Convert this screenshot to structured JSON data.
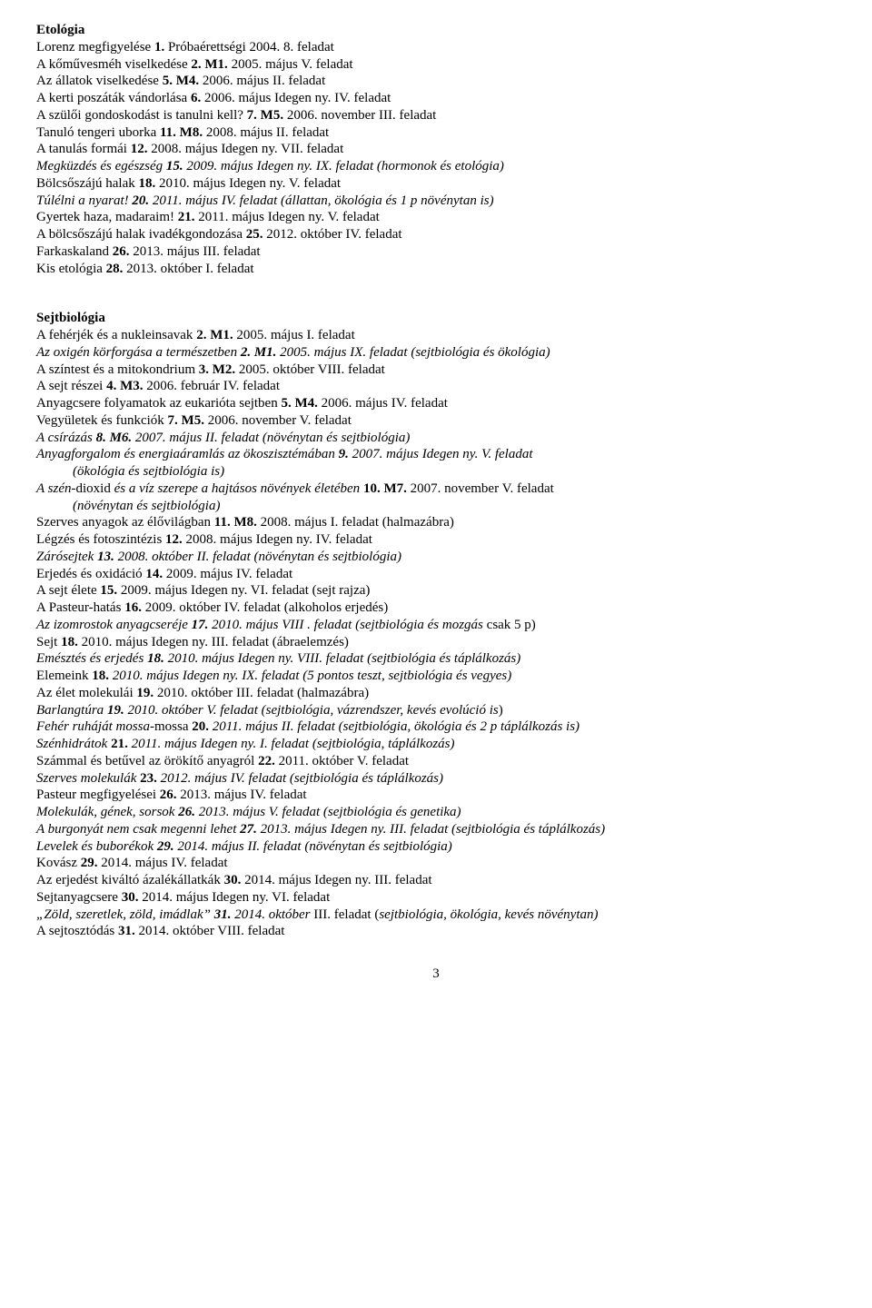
{
  "etologia": {
    "title": "Etológia",
    "lines": [
      {
        "segs": [
          {
            "t": "Lorenz megfigyelése  "
          },
          {
            "t": "1.",
            "b": 1
          },
          {
            "t": "  Próbaérettségi 2004.  8. feladat"
          }
        ]
      },
      {
        "segs": [
          {
            "t": "A kőművesméh viselkedése  "
          },
          {
            "t": "2.  M1.",
            "b": 1
          },
          {
            "t": "  2005. május  V. feladat"
          }
        ]
      },
      {
        "segs": [
          {
            "t": "Az állatok viselkedése  "
          },
          {
            "t": "5.  M4.",
            "b": 1
          },
          {
            "t": "  2006. május  II. feladat"
          }
        ]
      },
      {
        "segs": [
          {
            "t": "A kerti poszáták vándorlása  "
          },
          {
            "t": "6.",
            "b": 1
          },
          {
            "t": "  2006. május  Idegen ny.  IV. feladat"
          }
        ]
      },
      {
        "segs": [
          {
            "t": "A szülői gondoskodást is tanulni kell?  "
          },
          {
            "t": "7.  M5.",
            "b": 1
          },
          {
            "t": "  2006. november  III. feladat"
          }
        ]
      },
      {
        "segs": [
          {
            "t": "Tanuló tengeri uborka  "
          },
          {
            "t": "11.  M8.",
            "b": 1
          },
          {
            "t": "  2008. május  II. feladat"
          }
        ]
      },
      {
        "segs": [
          {
            "t": "A tanulás formái  "
          },
          {
            "t": "12.",
            "b": 1
          },
          {
            "t": "  2008. május  Idegen ny.  VII. feladat"
          }
        ]
      },
      {
        "segs": [
          {
            "t": "Megküzdés és egészség  ",
            "i": 1
          },
          {
            "t": "15.",
            "b": 1,
            "i": 1
          },
          {
            "t": "  2009. május  Idegen ny.  IX. feladat   (hormonok és etológia)",
            "i": 1
          }
        ]
      },
      {
        "segs": [
          {
            "t": "Bölcsőszájú halak  "
          },
          {
            "t": "18.",
            "b": 1
          },
          {
            "t": "  2010. május  Idegen ny.  V. feladat"
          }
        ]
      },
      {
        "segs": [
          {
            "t": "Túlélni a nyarat!  ",
            "i": 1
          },
          {
            "t": "20.",
            "b": 1,
            "i": 1
          },
          {
            "t": "  2011. május  IV. feladat  (állattan, ökológia és 1 p növénytan is)",
            "i": 1
          }
        ]
      },
      {
        "segs": [
          {
            "t": "Gyertek haza, madaraim!  "
          },
          {
            "t": "21.",
            "b": 1
          },
          {
            "t": "  2011. május  Idegen ny.  V. feladat"
          }
        ]
      },
      {
        "segs": [
          {
            "t": "A bölcsőszájú halak ivadékgondozása  "
          },
          {
            "t": "25.",
            "b": 1
          },
          {
            "t": "  2012. október  IV. feladat"
          }
        ]
      },
      {
        "segs": [
          {
            "t": "Farkaskaland  "
          },
          {
            "t": "26.",
            "b": 1
          },
          {
            "t": "  2013. május  III. feladat"
          }
        ]
      },
      {
        "segs": [
          {
            "t": "Kis etológia  "
          },
          {
            "t": "28.",
            "b": 1
          },
          {
            "t": "  2013. október  I. feladat"
          }
        ]
      }
    ]
  },
  "sejtbiologia": {
    "title": "Sejtbiológia",
    "lines": [
      {
        "segs": [
          {
            "t": "A fehérjék és a nukleinsavak  "
          },
          {
            "t": "2.  M1.",
            "b": 1
          },
          {
            "t": "  2005. május  I. feladat"
          }
        ]
      },
      {
        "segs": [
          {
            "t": "Az oxigén körforgása a természetben  ",
            "i": 1
          },
          {
            "t": "2.  M1.",
            "b": 1,
            "i": 1
          },
          {
            "t": "  2005. május  IX. feladat   (sejtbiológia és ökológia)",
            "i": 1
          }
        ]
      },
      {
        "segs": [
          {
            "t": "A színtest és a mitokondrium  "
          },
          {
            "t": "3.  M2.",
            "b": 1
          },
          {
            "t": "  2005. október  VIII. feladat"
          }
        ]
      },
      {
        "segs": [
          {
            "t": "A sejt részei  "
          },
          {
            "t": "4.  M3.",
            "b": 1
          },
          {
            "t": "  2006. február  IV. feladat"
          }
        ]
      },
      {
        "segs": [
          {
            "t": "Anyagcsere folyamatok az eukarióta sejtben  "
          },
          {
            "t": "5.  M4.",
            "b": 1
          },
          {
            "t": "  2006. május  IV. feladat"
          }
        ]
      },
      {
        "segs": [
          {
            "t": "Vegyületek és funkciók  "
          },
          {
            "t": "7.  M5.",
            "b": 1
          },
          {
            "t": "  2006. november  V. feladat"
          }
        ]
      },
      {
        "segs": [
          {
            "t": "A csírázás  ",
            "i": 1
          },
          {
            "t": "8.  M6.",
            "b": 1,
            "i": 1
          },
          {
            "t": "  2007. május  II. feladat   (növénytan és sejtbiológia)",
            "i": 1
          }
        ]
      },
      {
        "segs": [
          {
            "t": "Anyagforgalom és energiaáramlás az ökoszisztémában  ",
            "i": 1
          },
          {
            "t": "9.",
            "b": 1,
            "i": 1
          },
          {
            "t": "  2007. május Idegen ny.  V. feladat",
            "i": 1
          }
        ]
      },
      {
        "indent": 1,
        "segs": [
          {
            "t": "(ökológia és sejtbiológia is)",
            "i": 1
          }
        ]
      },
      {
        "segs": [
          {
            "t": "A szén-",
            "i": 1
          },
          {
            "t": "dioxid "
          },
          {
            "t": "és a víz szerepe a hajtásos növények életében  ",
            "i": 1
          },
          {
            "t": "10.  M7.",
            "b": 1
          },
          {
            "t": "  2007. november  V. feladat"
          }
        ]
      },
      {
        "indent": 1,
        "segs": [
          {
            "t": "(növénytan és sejtbiológia)",
            "i": 1
          }
        ]
      },
      {
        "segs": [
          {
            "t": "Szerves anyagok az élővilágban  "
          },
          {
            "t": "11.  M8.",
            "b": 1
          },
          {
            "t": "  2008. május  I. feladat   (halmazábra)"
          }
        ]
      },
      {
        "segs": [
          {
            "t": "Légzés és fotoszintézis  "
          },
          {
            "t": "12.",
            "b": 1
          },
          {
            "t": "  2008. május  Idegen ny.  IV. feladat"
          }
        ]
      },
      {
        "segs": [
          {
            "t": "Zárósejtek  ",
            "i": 1
          },
          {
            "t": "13.",
            "b": 1,
            "i": 1
          },
          {
            "t": "  2008. október  II. feladat   (növénytan és sejtbiológia)",
            "i": 1
          }
        ]
      },
      {
        "segs": [
          {
            "t": "Erjedés és oxidáció  "
          },
          {
            "t": "14.",
            "b": 1
          },
          {
            "t": "  2009. május  IV. feladat"
          }
        ]
      },
      {
        "segs": [
          {
            "t": "A sejt élete  "
          },
          {
            "t": "15.",
            "b": 1
          },
          {
            "t": "  2009. május  Idegen ny.  VI. feladat   (sejt rajza)"
          }
        ]
      },
      {
        "segs": [
          {
            "t": "A Pasteur-hatás   "
          },
          {
            "t": "16.",
            "b": 1
          },
          {
            "t": " 2009. október  IV. feladat  (alkoholos erjedés)"
          }
        ]
      },
      {
        "segs": [
          {
            "t": "Az izomrostok anyagcseréje  ",
            "i": 1
          },
          {
            "t": "17.",
            "b": 1,
            "i": 1
          },
          {
            "t": "  2010. május  VIII . feladat     (sejtbiológia és mozgás ",
            "i": 1
          },
          {
            "t": "csak 5 p)"
          }
        ]
      },
      {
        "segs": [
          {
            "t": "Sejt  "
          },
          {
            "t": "18.",
            "b": 1
          },
          {
            "t": "  2010. május  Idegen ny. III. feladat  (ábraelemzés)"
          }
        ]
      },
      {
        "segs": [
          {
            "t": "Emésztés és erjedés  ",
            "i": 1
          },
          {
            "t": "18.",
            "b": 1,
            "i": 1
          },
          {
            "t": "  2010. május  Idegen ny. VIII. feladat   (sejtbiológia és táplálkozás)",
            "i": 1
          }
        ]
      },
      {
        "segs": [
          {
            "t": "Elemeink  "
          },
          {
            "t": "18.",
            "b": 1
          },
          {
            "t": "  "
          },
          {
            "t": "2010. május  Idegen ny.  IX. feladat  (5 pontos teszt, sejtbiológia és vegyes)",
            "i": 1
          }
        ]
      },
      {
        "segs": [
          {
            "t": "Az élet molekulái  "
          },
          {
            "t": "19.",
            "b": 1
          },
          {
            "t": "  2010. október  III. feladat  (halmazábra)"
          }
        ]
      },
      {
        "segs": [
          {
            "t": "Barlangtúra  ",
            "i": 1
          },
          {
            "t": "19.",
            "b": 1,
            "i": 1
          },
          {
            "t": "  2010. október  V. feladat  (sejtbiológia, vázrendszer, kevés evolúció is",
            "i": 1
          },
          {
            "t": ")"
          }
        ]
      },
      {
        "segs": [
          {
            "t": "Fehér ruháját mossa-",
            "i": 1
          },
          {
            "t": "mossa  "
          },
          {
            "t": "20.",
            "b": 1
          },
          {
            "t": "  "
          },
          {
            "t": "2011. május  II. feladat  (sejtbiológia, ökológia és 2 p táplálkozás is)",
            "i": 1
          }
        ]
      },
      {
        "segs": [
          {
            "t": "Szénhidrátok  ",
            "i": 1
          },
          {
            "t": "21.",
            "b": 1
          },
          {
            "t": "  "
          },
          {
            "t": "2011. május  Idegen ny.  I. feladat  (sejtbiológia, táplálkozás)",
            "i": 1
          }
        ]
      },
      {
        "segs": [
          {
            "t": "Számmal és betűvel az örökítő anyagról  "
          },
          {
            "t": "22.",
            "b": 1
          },
          {
            "t": "  2011. október  V. feladat"
          }
        ]
      },
      {
        "segs": [
          {
            "t": "Szerves molekulák  ",
            "i": 1
          },
          {
            "t": "23.",
            "b": 1
          },
          {
            "t": "  "
          },
          {
            "t": "2012. május  IV. feladat  (sejtbiológia és táplálkozás)",
            "i": 1
          }
        ]
      },
      {
        "segs": [
          {
            "t": "Pasteur megfigyelései  "
          },
          {
            "t": "26.",
            "b": 1
          },
          {
            "t": "  2013. május  IV. feladat"
          }
        ]
      },
      {
        "segs": [
          {
            "t": "Molekulák, gének, sorsok  ",
            "i": 1
          },
          {
            "t": "26.",
            "b": 1,
            "i": 1
          },
          {
            "t": "  2013. május  V. feladat   (sejtbiológia és genetika)",
            "i": 1
          }
        ]
      },
      {
        "segs": [
          {
            "t": "A burgonyát nem csak megenni lehet  ",
            "i": 1
          },
          {
            "t": "27.",
            "b": 1,
            "i": 1
          },
          {
            "t": " 2013. május  Idegen ny. III. feladat  (sejtbiológia és táplálkozás)",
            "i": 1
          }
        ]
      },
      {
        "segs": [
          {
            "t": "Levelek és buborékok  ",
            "i": 1
          },
          {
            "t": "29.",
            "b": 1,
            "i": 1
          },
          {
            "t": "  2014. május  II. feladat   (növénytan és sejtbiológia)",
            "i": 1
          }
        ]
      },
      {
        "segs": [
          {
            "t": "Kovász  "
          },
          {
            "t": "29.",
            "b": 1
          },
          {
            "t": "  2014. május  IV. feladat"
          }
        ]
      },
      {
        "segs": [
          {
            "t": "Az erjedést kiváltó ázalékállatkák  "
          },
          {
            "t": "30.",
            "b": 1
          },
          {
            "t": "  2014. május  Idegen  ny.  III. feladat"
          }
        ]
      },
      {
        "segs": [
          {
            "t": "Sejtanyagcsere  "
          },
          {
            "t": "30.",
            "b": 1
          },
          {
            "t": "  2014. május  Idegen ny.  VI. feladat"
          }
        ]
      },
      {
        "segs": [
          {
            "t": "„Zöld, szeretlek, zöld, imádlak” ",
            "i": 1
          },
          {
            "t": "31.",
            "b": 1,
            "i": 1
          },
          {
            "t": "  2014. október ",
            "i": 1
          },
          {
            "t": " III. feladat  ("
          },
          {
            "t": "sejtbiológia, ökológia, kevés növénytan)",
            "i": 1
          }
        ]
      },
      {
        "segs": [
          {
            "t": "A sejtosztódás  "
          },
          {
            "t": "31.",
            "b": 1
          },
          {
            "t": "  2014. október  VIII. feladat"
          }
        ]
      }
    ]
  },
  "page_number": "3"
}
